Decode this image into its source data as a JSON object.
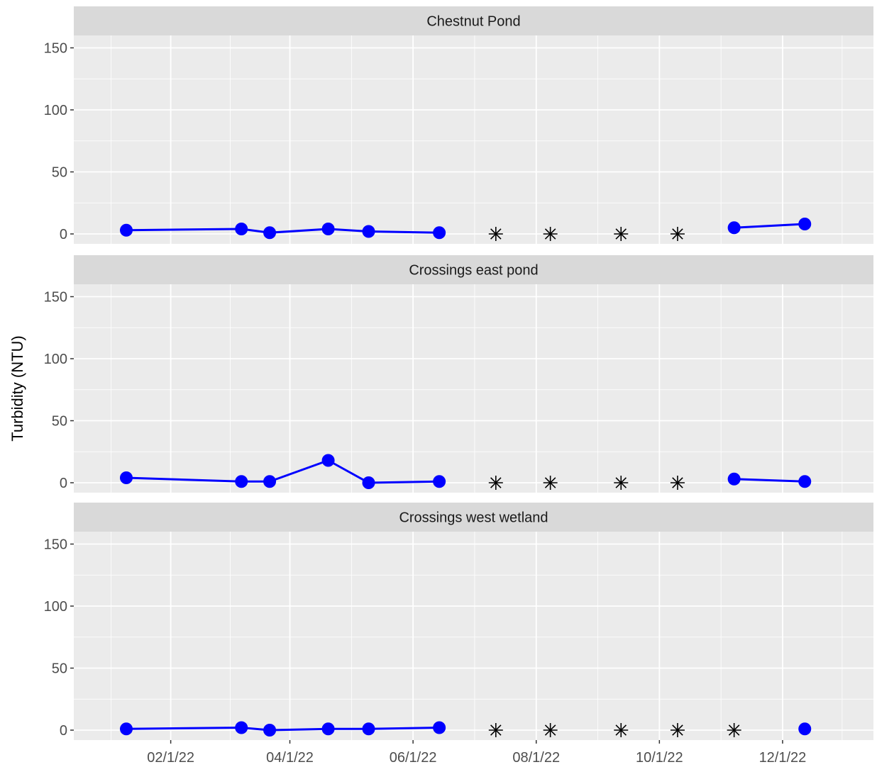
{
  "chart_data": {
    "type": "line",
    "ylabel": "Turbidity (NTU)",
    "xlabel": "",
    "ylim": [
      -8,
      160
    ],
    "yticks": [
      0,
      50,
      100,
      150
    ],
    "xlim": [
      "2021-12-15",
      "2023-01-15"
    ],
    "xticks": [
      {
        "date": "2022-02-01",
        "label": "02/1/22"
      },
      {
        "date": "2022-04-01",
        "label": "04/1/22"
      },
      {
        "date": "2022-06-01",
        "label": "06/1/22"
      },
      {
        "date": "2022-08-01",
        "label": "08/1/22"
      },
      {
        "date": "2022-10-01",
        "label": "10/1/22"
      },
      {
        "date": "2022-12-01",
        "label": "12/1/22"
      }
    ],
    "grid": true,
    "line_color": "#0000ff",
    "missing_marker_color": "#000000",
    "panel_background": "#ebebeb",
    "strip_background": "#d9d9d9",
    "panels": [
      {
        "title": "Chestnut Pond",
        "points": [
          {
            "date": "2022-01-10",
            "value": 3
          },
          {
            "date": "2022-03-08",
            "value": 4
          },
          {
            "date": "2022-03-22",
            "value": 1
          },
          {
            "date": "2022-04-20",
            "value": 4
          },
          {
            "date": "2022-05-10",
            "value": 2
          },
          {
            "date": "2022-06-14",
            "value": 1
          },
          {
            "date": "2022-07-12",
            "missing": true
          },
          {
            "date": "2022-08-08",
            "missing": true
          },
          {
            "date": "2022-09-12",
            "missing": true
          },
          {
            "date": "2022-10-10",
            "missing": true
          },
          {
            "date": "2022-11-07",
            "value": 5
          },
          {
            "date": "2022-12-12",
            "value": 8
          }
        ]
      },
      {
        "title": "Crossings east pond",
        "points": [
          {
            "date": "2022-01-10",
            "value": 4
          },
          {
            "date": "2022-03-08",
            "value": 1
          },
          {
            "date": "2022-03-22",
            "value": 1
          },
          {
            "date": "2022-04-20",
            "value": 18
          },
          {
            "date": "2022-05-10",
            "value": 0
          },
          {
            "date": "2022-06-14",
            "value": 1
          },
          {
            "date": "2022-07-12",
            "missing": true
          },
          {
            "date": "2022-08-08",
            "missing": true
          },
          {
            "date": "2022-09-12",
            "missing": true
          },
          {
            "date": "2022-10-10",
            "missing": true
          },
          {
            "date": "2022-11-07",
            "value": 3
          },
          {
            "date": "2022-12-12",
            "value": 1
          }
        ]
      },
      {
        "title": "Crossings west wetland",
        "points": [
          {
            "date": "2022-01-10",
            "value": 1
          },
          {
            "date": "2022-03-08",
            "value": 2
          },
          {
            "date": "2022-03-22",
            "value": 0
          },
          {
            "date": "2022-04-20",
            "value": 1
          },
          {
            "date": "2022-05-10",
            "value": 1
          },
          {
            "date": "2022-06-14",
            "value": 2
          },
          {
            "date": "2022-07-12",
            "missing": true
          },
          {
            "date": "2022-08-08",
            "missing": true
          },
          {
            "date": "2022-09-12",
            "missing": true
          },
          {
            "date": "2022-10-10",
            "missing": true
          },
          {
            "date": "2022-11-07",
            "missing": true
          },
          {
            "date": "2022-12-12",
            "value": 1
          }
        ]
      }
    ]
  }
}
